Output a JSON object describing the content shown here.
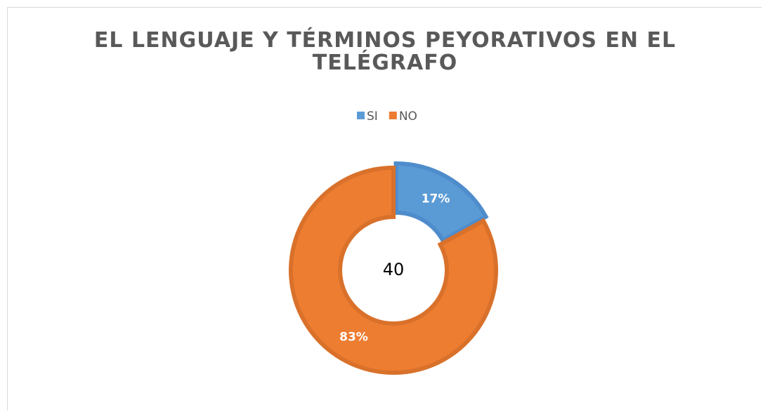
{
  "chart_data": {
    "type": "donut",
    "title": "EL LENGUAJE Y TÉRMINOS PEYORATIVOS EN EL TELÉGRAFO",
    "categories": [
      "SI",
      "NO"
    ],
    "values": [
      17,
      83
    ],
    "value_labels": [
      "17%",
      "83%"
    ],
    "colors": [
      "#5b9bd5",
      "#ed7d31"
    ],
    "border_colors": [
      "#4e8ccc",
      "#d9712b"
    ],
    "center_label": 40,
    "legend": "top"
  }
}
